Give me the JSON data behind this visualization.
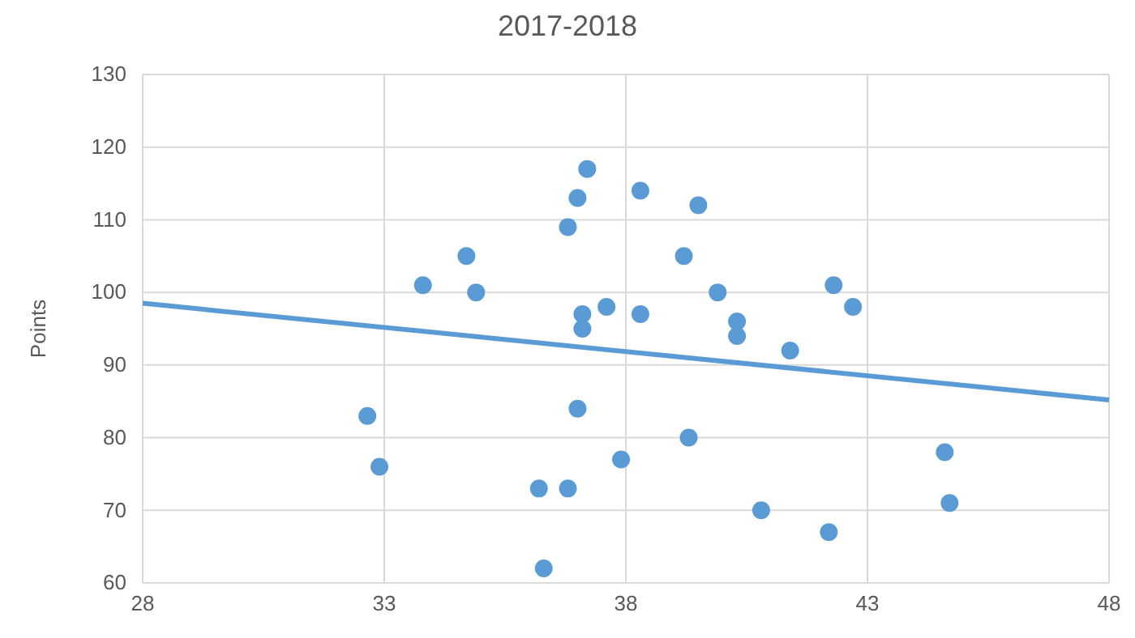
{
  "chart_data": {
    "type": "scatter",
    "title": "2017-2018",
    "ylabel": "Points",
    "xlim": [
      28,
      48
    ],
    "xticks": [
      28,
      33,
      38,
      43,
      48
    ],
    "ylim": [
      60,
      130
    ],
    "yticks": [
      60,
      70,
      80,
      90,
      100,
      110,
      120,
      130
    ],
    "grid": true,
    "series": [
      {
        "marker": "circle",
        "color": "#5b9bd5",
        "x": [
          32.65,
          32.9,
          33.8,
          34.7,
          34.9,
          36.2,
          36.3,
          36.8,
          36.8,
          37.0,
          37.0,
          37.1,
          37.1,
          37.2,
          37.6,
          37.9,
          38.3,
          38.3,
          39.2,
          39.3,
          39.5,
          39.9,
          40.3,
          40.3,
          40.8,
          41.4,
          42.2,
          42.3,
          42.7,
          44.6,
          44.7
        ],
        "values": [
          83,
          76,
          101,
          105,
          100,
          73,
          62,
          109,
          73,
          113,
          84,
          95,
          97,
          117,
          98,
          77,
          114,
          97,
          105,
          80,
          112,
          100,
          94,
          96,
          70,
          92,
          67,
          101,
          98,
          78,
          71
        ]
      },
      {
        "type": "line",
        "color": "#5b9bd5",
        "x": [
          28,
          48
        ],
        "values": [
          98.5,
          85.2
        ]
      }
    ]
  }
}
